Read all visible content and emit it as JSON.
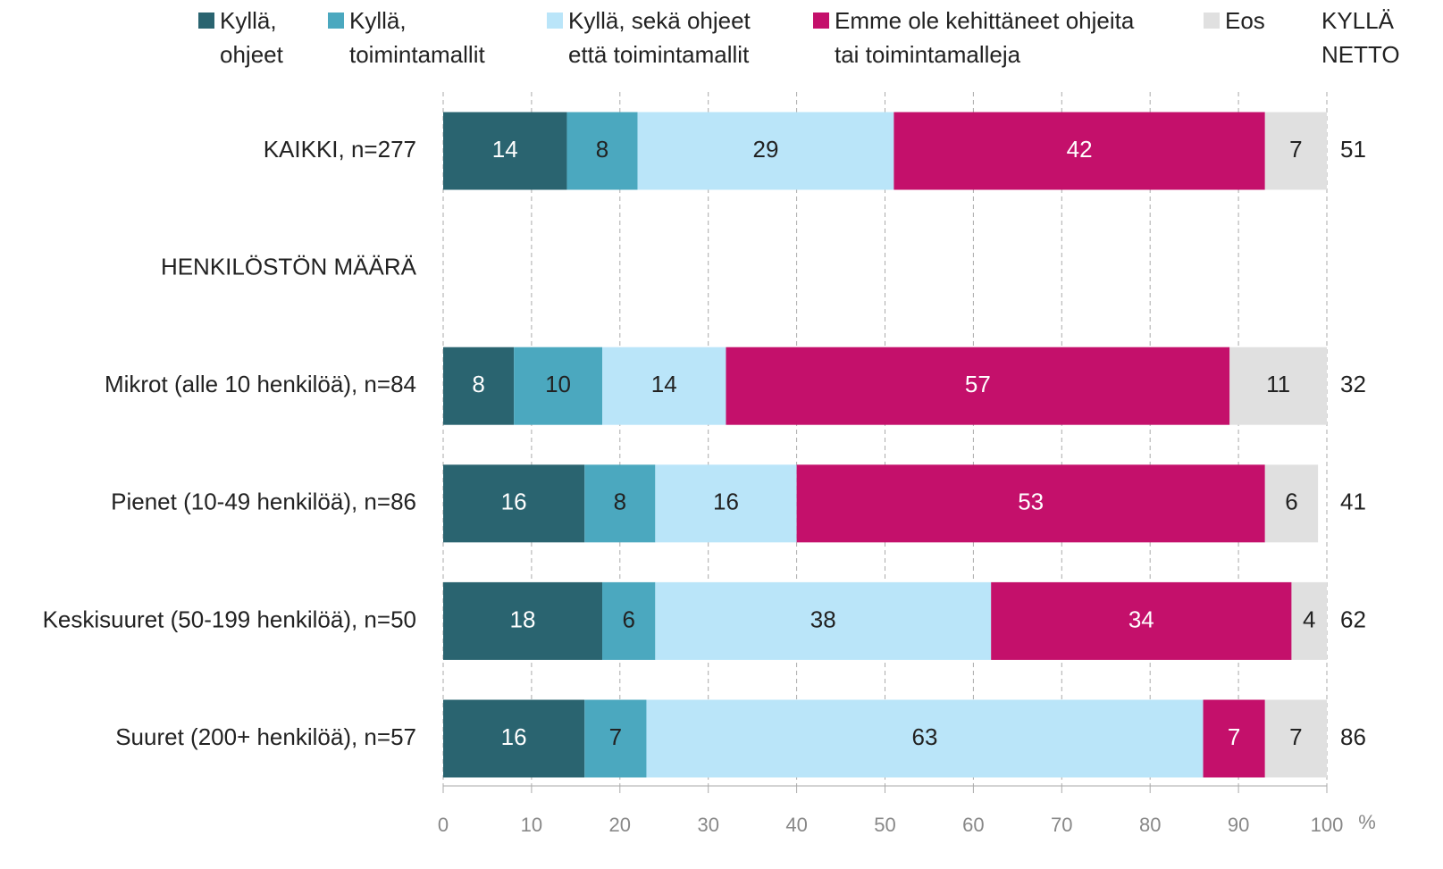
{
  "chart_data": {
    "type": "stacked-bar-horizontal",
    "categories": [
      "KAIKKI, n=277",
      "HENKILÖSTÖN MÄÄRÄ",
      "Mikrot (alle 10 henkilöä), n=84",
      "Pienet (10-49 henkilöä), n=86",
      "Keskisuuret (50-199 henkilöä), n=50",
      "Suuret (200+ henkilöä), n=57"
    ],
    "series": [
      {
        "name": "Kyllä,\nohjeet",
        "color": "#2a6470",
        "label_color": "#ffffff",
        "values": [
          14,
          null,
          8,
          16,
          18,
          16
        ]
      },
      {
        "name": "Kyllä,\ntoimintamallit",
        "color": "#4ba8bf",
        "label_color": "#222222",
        "values": [
          8,
          null,
          10,
          8,
          6,
          7
        ]
      },
      {
        "name": "Kyllä, sekä ohjeet\nettä toimintamallit",
        "color": "#bae5f9",
        "label_color": "#222222",
        "values": [
          29,
          null,
          14,
          16,
          38,
          63
        ]
      },
      {
        "name": "Emme ole kehittäneet ohjeita\ntai toimintamalleja",
        "color": "#c4106b",
        "label_color": "#ffffff",
        "values": [
          42,
          null,
          57,
          53,
          34,
          7
        ]
      },
      {
        "name": "Eos",
        "color": "#e0e0e0",
        "label_color": "#222222",
        "values": [
          7,
          null,
          11,
          6,
          4,
          7
        ]
      }
    ],
    "netto": {
      "name": "KYLLÄ\nNETTO",
      "values": [
        51,
        null,
        32,
        41,
        62,
        86
      ]
    },
    "xlim": [
      0,
      100
    ],
    "xticks": [
      0,
      10,
      20,
      30,
      40,
      50,
      60,
      70,
      80,
      90,
      100
    ],
    "x_label": "%",
    "grid": true
  }
}
